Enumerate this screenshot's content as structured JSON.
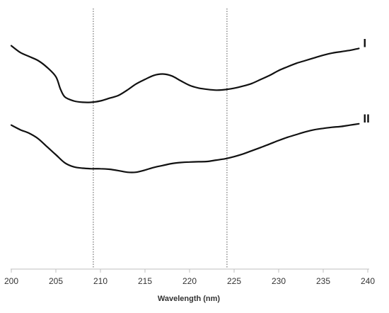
{
  "chart_data": {
    "type": "line",
    "title": "",
    "xlabel": "Wavelength (nm)",
    "ylabel": "",
    "xlim": [
      200,
      240
    ],
    "ylim": [
      0,
      1
    ],
    "x_ticks": [
      200,
      205,
      210,
      215,
      220,
      225,
      230,
      235,
      240
    ],
    "x_tick_labels": [
      "200",
      "205",
      "210",
      "215",
      "220",
      "225",
      "230",
      "235",
      "240"
    ],
    "y_axis_visible": false,
    "grid": false,
    "reference_lines_x": [
      209.2,
      224.2
    ],
    "series": [
      {
        "name": "I",
        "color": "#111111",
        "x": [
          200,
          201,
          202,
          203,
          204,
          205,
          205.5,
          206,
          207,
          208,
          209,
          210,
          211,
          212,
          213,
          214,
          215,
          216,
          217,
          218,
          219,
          220,
          221,
          222,
          223,
          224,
          225,
          226,
          227,
          228,
          229,
          230,
          231,
          232,
          233,
          234,
          235,
          236,
          237,
          238,
          239
        ],
        "y": [
          0.83,
          0.805,
          0.79,
          0.775,
          0.75,
          0.715,
          0.67,
          0.64,
          0.625,
          0.62,
          0.62,
          0.625,
          0.635,
          0.645,
          0.665,
          0.688,
          0.705,
          0.72,
          0.725,
          0.718,
          0.7,
          0.683,
          0.673,
          0.668,
          0.665,
          0.667,
          0.672,
          0.68,
          0.69,
          0.705,
          0.72,
          0.738,
          0.752,
          0.765,
          0.775,
          0.785,
          0.795,
          0.803,
          0.808,
          0.813,
          0.82
        ]
      },
      {
        "name": "II",
        "color": "#111111",
        "x": [
          200,
          201,
          202,
          203,
          204,
          205,
          206,
          207,
          208,
          209,
          210,
          211,
          212,
          213,
          214,
          215,
          216,
          217,
          218,
          219,
          220,
          221,
          222,
          223,
          224,
          225,
          226,
          227,
          228,
          229,
          230,
          231,
          232,
          233,
          234,
          235,
          236,
          237,
          238,
          239
        ],
        "y": [
          0.535,
          0.518,
          0.505,
          0.485,
          0.455,
          0.425,
          0.395,
          0.38,
          0.375,
          0.373,
          0.373,
          0.371,
          0.366,
          0.36,
          0.36,
          0.368,
          0.378,
          0.385,
          0.392,
          0.396,
          0.398,
          0.399,
          0.4,
          0.405,
          0.41,
          0.418,
          0.428,
          0.44,
          0.452,
          0.465,
          0.478,
          0.49,
          0.5,
          0.51,
          0.518,
          0.523,
          0.527,
          0.53,
          0.535,
          0.54
        ]
      }
    ]
  }
}
